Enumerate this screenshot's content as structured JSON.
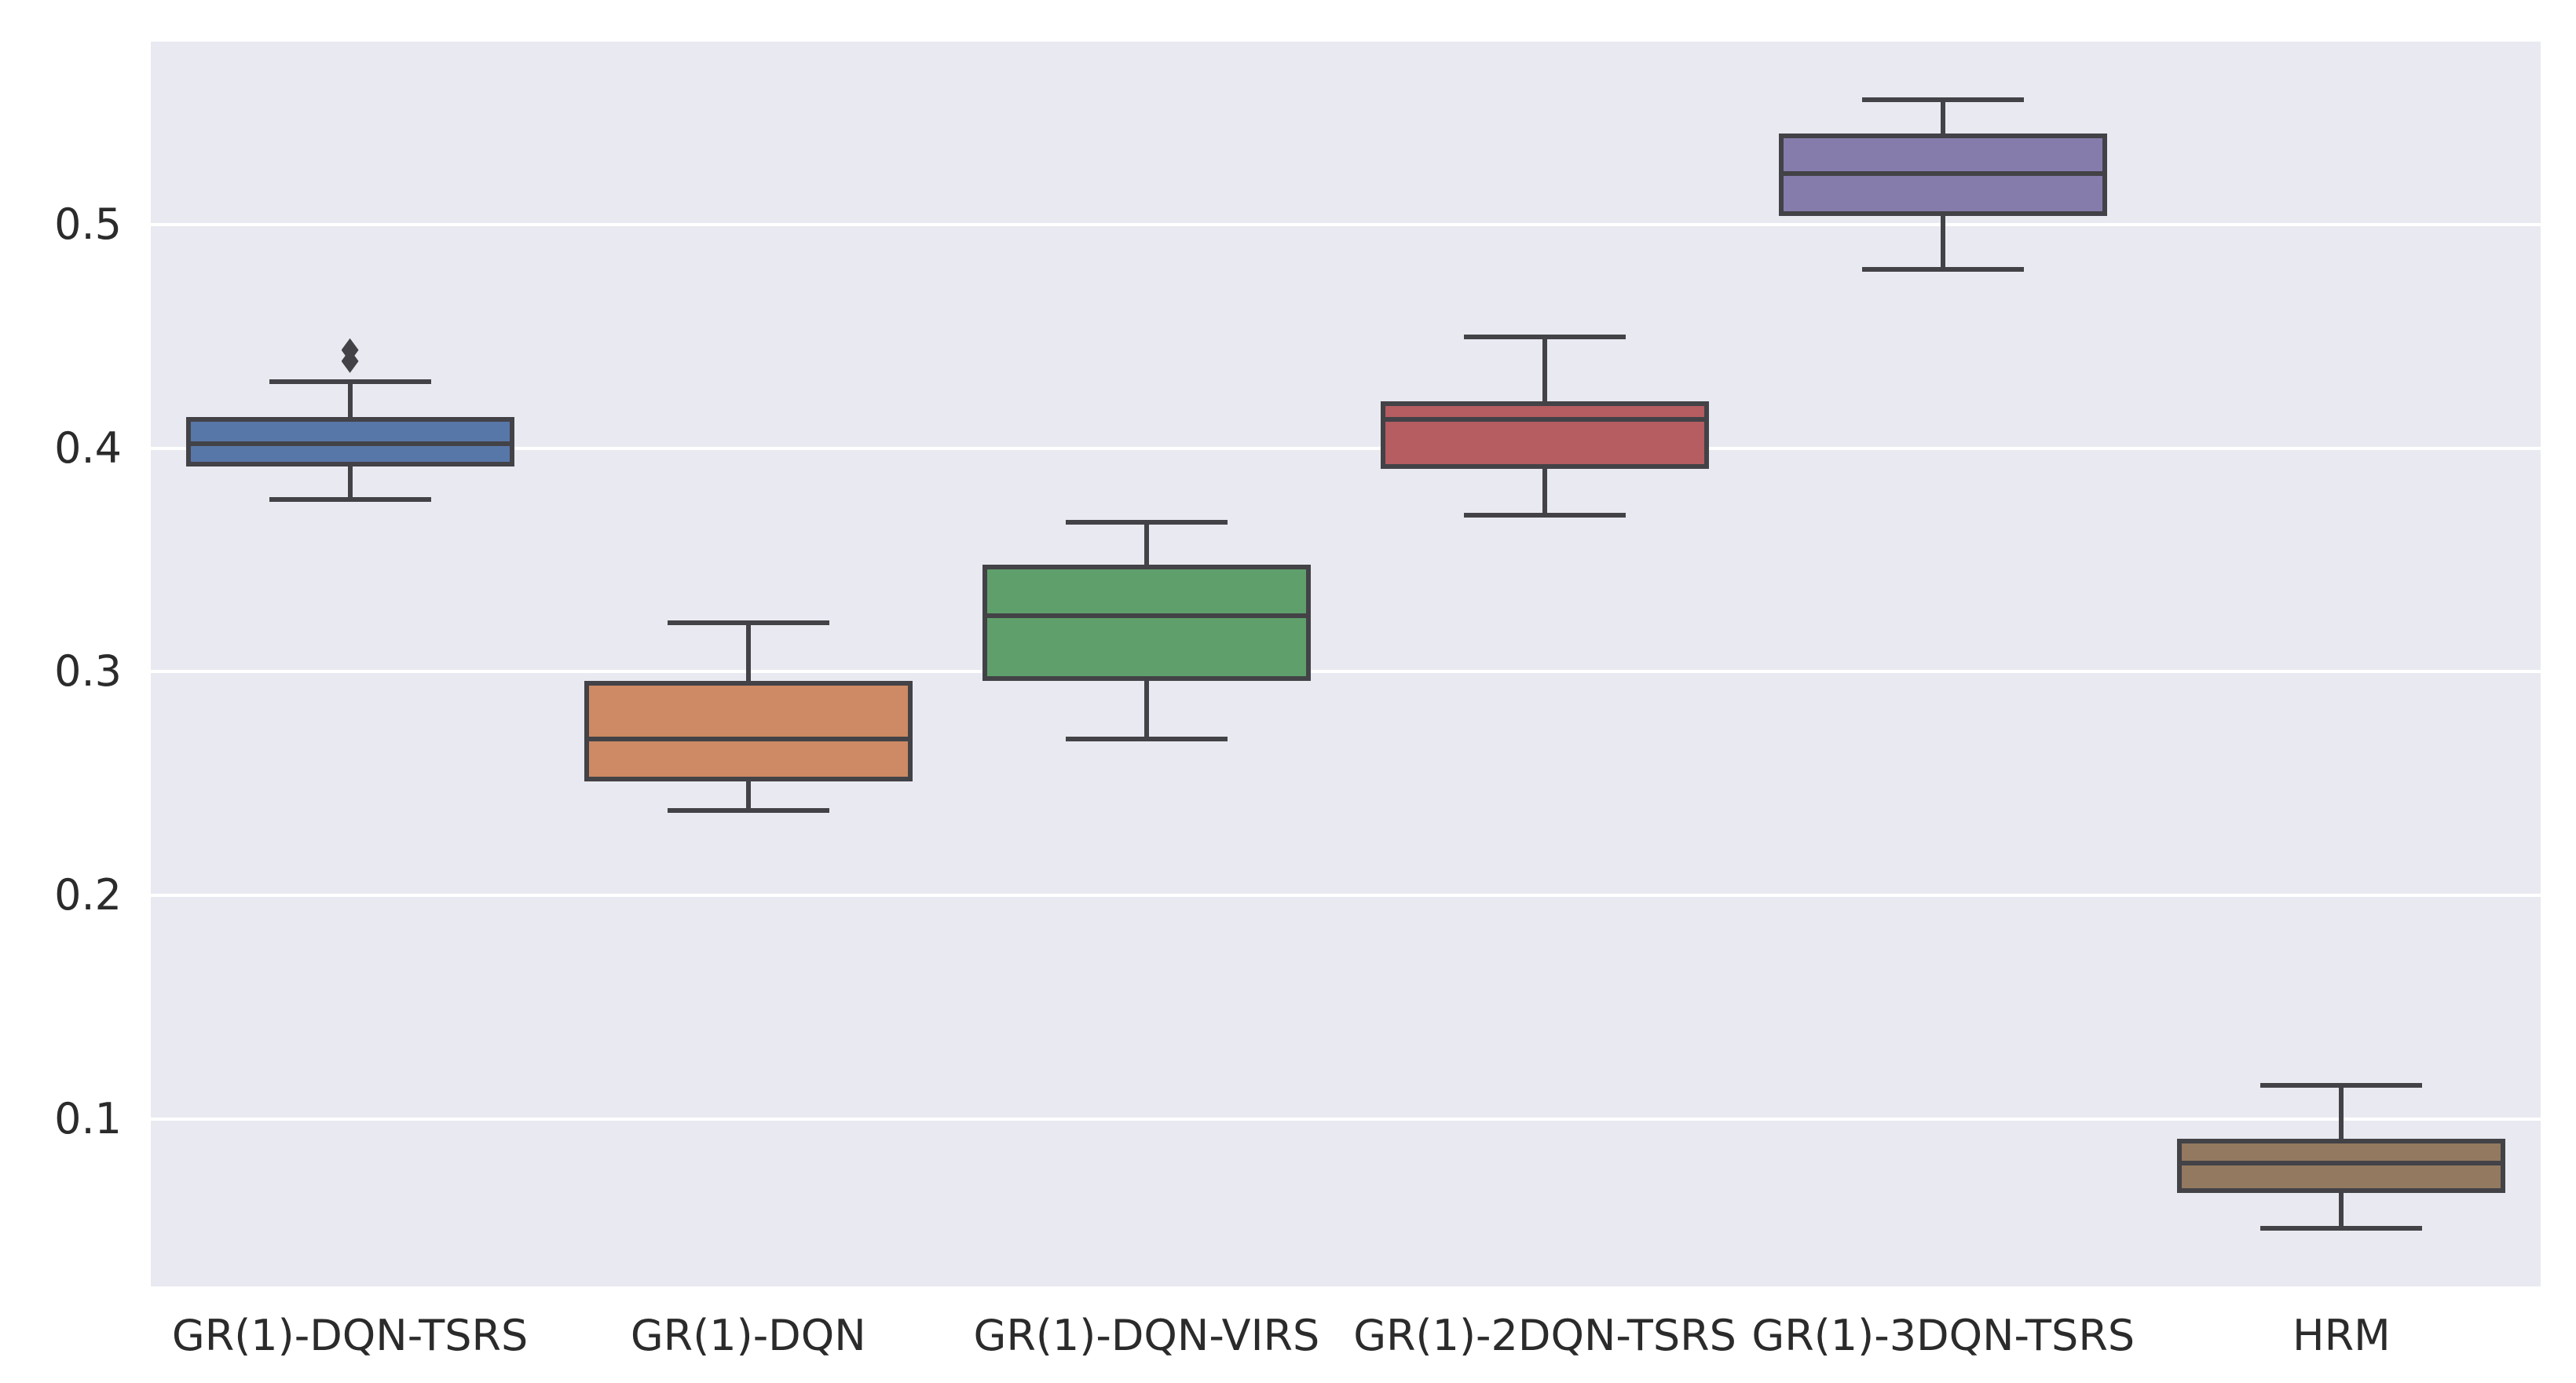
{
  "figure": {
    "background": "#ffffff",
    "plot_background": "#E9E9F1",
    "grid_color": "#FFFFFF",
    "line_color": "#424247",
    "tick_label_color": "#2B2B2B"
  },
  "chart_data": {
    "type": "boxplot",
    "title": "",
    "xlabel": "",
    "ylabel": "",
    "grid": true,
    "legend": false,
    "orientation": "vertical",
    "ylim": [
      0.025,
      0.582
    ],
    "y_ticks": [
      0.1,
      0.2,
      0.3,
      0.4,
      0.5
    ],
    "y_tick_labels": [
      "0.1",
      "0.2",
      "0.3",
      "0.4",
      "0.5"
    ],
    "flier_marker": "diamond",
    "categories": [
      "GR(1)-DQN-TSRS",
      "GR(1)-DQN",
      "GR(1)-DQN-VIRS",
      "GR(1)-2DQN-TSRS",
      "GR(1)-3DQN-TSRS",
      "HRM"
    ],
    "series": [
      {
        "name": "GR(1)-DQN-TSRS",
        "color": "#5877A9",
        "whislo": 0.377,
        "q1": 0.393,
        "med": 0.402,
        "q3": 0.413,
        "whishi": 0.43,
        "fliers": [
          0.439,
          0.444
        ]
      },
      {
        "name": "GR(1)-DQN",
        "color": "#CD8A64",
        "whislo": 0.238,
        "q1": 0.252,
        "med": 0.27,
        "q3": 0.295,
        "whishi": 0.322,
        "fliers": []
      },
      {
        "name": "GR(1)-DQN-VIRS",
        "color": "#5F9F6B",
        "whislo": 0.27,
        "q1": 0.297,
        "med": 0.325,
        "q3": 0.347,
        "whishi": 0.367,
        "fliers": []
      },
      {
        "name": "GR(1)-2DQN-TSRS",
        "color": "#B55D61",
        "whislo": 0.37,
        "q1": 0.392,
        "med": 0.413,
        "q3": 0.42,
        "whishi": 0.45,
        "fliers": []
      },
      {
        "name": "GR(1)-3DQN-TSRS",
        "color": "#867CAC",
        "whislo": 0.48,
        "q1": 0.505,
        "med": 0.523,
        "q3": 0.54,
        "whishi": 0.556,
        "fliers": []
      },
      {
        "name": "HRM",
        "color": "#93795F",
        "whislo": 0.051,
        "q1": 0.068,
        "med": 0.08,
        "q3": 0.09,
        "whishi": 0.115,
        "fliers": []
      }
    ]
  }
}
